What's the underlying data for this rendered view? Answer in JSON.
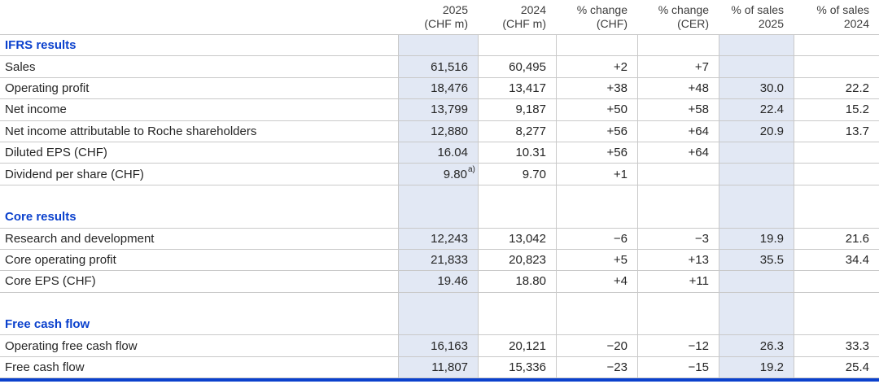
{
  "colors": {
    "brand_blue": "#0b41cd",
    "highlight_column_bg": "#e2e8f4",
    "grid_line": "#c9c9c9",
    "body_text": "#262626",
    "header_text": "#3d3d3d"
  },
  "table": {
    "columns": [
      {
        "key": "chf_2025",
        "line1": "2025",
        "line2": "(CHF m)",
        "highlight": true
      },
      {
        "key": "chf_2024",
        "line1": "2024",
        "line2": "(CHF m)",
        "highlight": false
      },
      {
        "key": "pct_change_chf",
        "line1": "% change",
        "line2": "(CHF)",
        "highlight": false
      },
      {
        "key": "pct_change_cer",
        "line1": "% change",
        "line2": "(CER)",
        "highlight": false
      },
      {
        "key": "pct_sales_2025",
        "line1": "% of sales",
        "line2": "2025",
        "highlight": true
      },
      {
        "key": "pct_sales_2024",
        "line1": "% of sales",
        "line2": "2024",
        "highlight": false
      }
    ],
    "sections": [
      {
        "title": "IFRS results",
        "rows": [
          {
            "label": "Sales",
            "values": [
              "61,516",
              "60,495",
              "+2",
              "+7",
              "",
              ""
            ]
          },
          {
            "label": "Operating profit",
            "values": [
              "18,476",
              "13,417",
              "+38",
              "+48",
              "30.0",
              "22.2"
            ]
          },
          {
            "label": "Net income",
            "values": [
              "13,799",
              "9,187",
              "+50",
              "+58",
              "22.4",
              "15.2"
            ]
          },
          {
            "label": "Net income attributable to Roche shareholders",
            "values": [
              "12,880",
              "8,277",
              "+56",
              "+64",
              "20.9",
              "13.7"
            ]
          },
          {
            "label": "Diluted EPS (CHF)",
            "values": [
              "16.04",
              "10.31",
              "+56",
              "+64",
              "",
              ""
            ]
          },
          {
            "label": "Dividend per share (CHF)",
            "values": [
              "9.80",
              "9.70",
              "+1",
              "",
              "",
              ""
            ],
            "footnote": {
              "col": 0,
              "marker": "a)"
            }
          }
        ]
      },
      {
        "title": "Core results",
        "rows": [
          {
            "label": "Research and development",
            "values": [
              "12,243",
              "13,042",
              "−6",
              "−3",
              "19.9",
              "21.6"
            ]
          },
          {
            "label": "Core operating profit",
            "values": [
              "21,833",
              "20,823",
              "+5",
              "+13",
              "35.5",
              "34.4"
            ]
          },
          {
            "label": "Core EPS (CHF)",
            "values": [
              "19.46",
              "18.80",
              "+4",
              "+11",
              "",
              ""
            ]
          }
        ]
      },
      {
        "title": "Free cash flow",
        "rows": [
          {
            "label": "Operating free cash flow",
            "values": [
              "16,163",
              "20,121",
              "−20",
              "−12",
              "26.3",
              "33.3"
            ]
          },
          {
            "label": "Free cash flow",
            "values": [
              "11,807",
              "15,336",
              "−23",
              "−15",
              "19.2",
              "25.4"
            ]
          }
        ]
      }
    ]
  }
}
